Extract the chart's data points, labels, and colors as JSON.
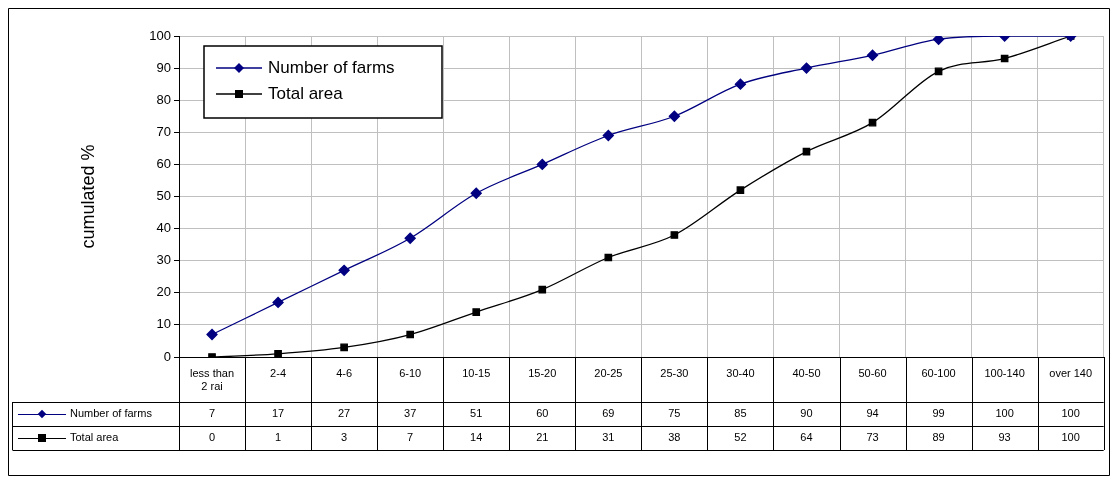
{
  "chart_data": {
    "type": "line",
    "ylabel": "cumulated %",
    "categories": [
      "less than 2 rai",
      "2-4",
      "4-6",
      "6-10",
      "10-15",
      "15-20",
      "20-25",
      "25-30",
      "30-40",
      "40-50",
      "50-60",
      "60-100",
      "100-140",
      "over 140"
    ],
    "series": [
      {
        "name": "Number of farms",
        "color": "#000080",
        "marker": "diamond",
        "values": [
          7,
          17,
          27,
          37,
          51,
          60,
          69,
          75,
          85,
          90,
          94,
          99,
          100,
          100
        ]
      },
      {
        "name": "Total area",
        "color": "#000000",
        "marker": "square",
        "values": [
          0,
          1,
          3,
          7,
          14,
          21,
          31,
          38,
          52,
          64,
          73,
          89,
          93,
          100
        ]
      }
    ],
    "ylim": [
      0,
      100
    ],
    "yticks": [
      0,
      10,
      20,
      30,
      40,
      50,
      60,
      70,
      80,
      90,
      100
    ],
    "grid": true,
    "legend": "top left",
    "data_labels": true,
    "line_style": "solid"
  }
}
